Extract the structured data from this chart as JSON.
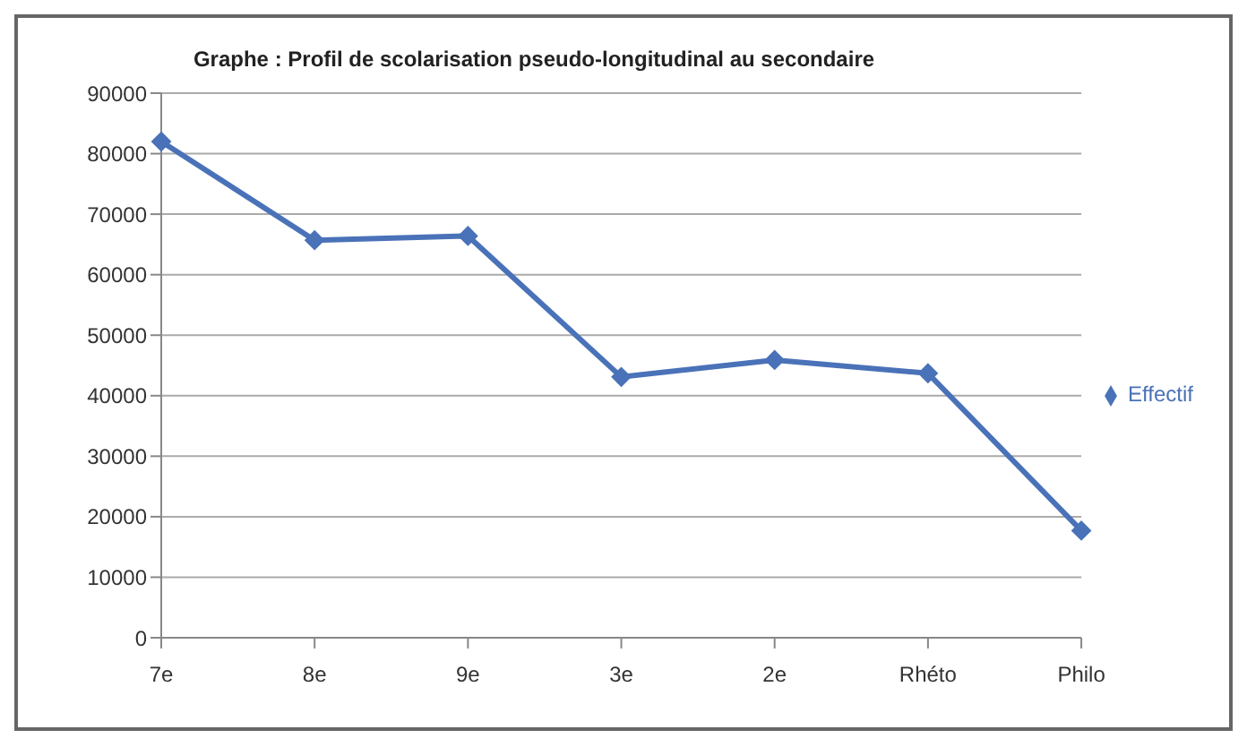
{
  "chart_data": {
    "type": "line",
    "title": "Graphe : Profil de scolarisation pseudo-longitudinal au secondaire",
    "categories": [
      "7e",
      "8e",
      "9e",
      "3e",
      "2e",
      "Rhéto",
      "Philo"
    ],
    "series": [
      {
        "name": "Effectif",
        "color": "#4a72b8",
        "values": [
          82000,
          65700,
          66400,
          43100,
          45900,
          43700,
          17700
        ]
      }
    ],
    "ylim": [
      0,
      90000
    ],
    "yticks": [
      0,
      10000,
      20000,
      30000,
      40000,
      50000,
      60000,
      70000,
      80000,
      90000
    ],
    "grid": "y",
    "legend": "right",
    "marker": "diamond",
    "line_style": "solid"
  }
}
